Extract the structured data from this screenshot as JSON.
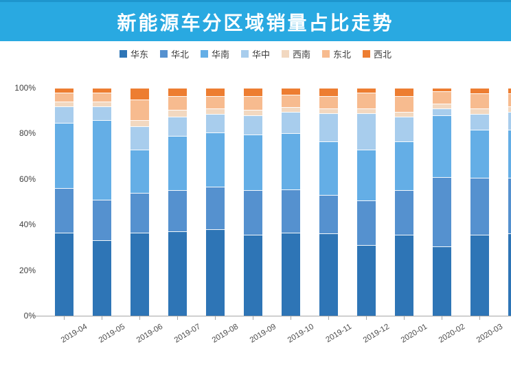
{
  "header": {
    "title": "新能源车分区域销量占比走势",
    "banner_color": "#29a9e1",
    "title_color": "#ffffff"
  },
  "chart_data": {
    "type": "bar",
    "stacked": true,
    "percent_stack": true,
    "grid": false,
    "legend_position": "top",
    "title": "新能源车分区域销量占比走势",
    "xlabel": "",
    "ylabel": "",
    "ylim": [
      0,
      100
    ],
    "yticks": [
      "0%",
      "20%",
      "40%",
      "60%",
      "80%",
      "100%"
    ],
    "ytick_values": [
      0,
      20,
      40,
      60,
      80,
      100
    ],
    "categories": [
      "2019-04",
      "2019-05",
      "2019-06",
      "2019-07",
      "2019-08",
      "2019-09",
      "2019-10",
      "2019-11",
      "2019-12",
      "2020-01",
      "2020-02",
      "2020-03"
    ],
    "series": [
      {
        "name": "华东",
        "color": "#2e75b6",
        "values": [
          36.5,
          33.0,
          36.5,
          37.0,
          38.0,
          35.5,
          36.5,
          36.0,
          31.0,
          35.5,
          30.5,
          35.5
        ]
      },
      {
        "name": "华北",
        "color": "#5591cf",
        "values": [
          19.5,
          18.0,
          17.5,
          18.0,
          18.5,
          19.5,
          19.0,
          17.0,
          19.5,
          19.5,
          30.5,
          25.0
        ]
      },
      {
        "name": "华南",
        "color": "#64aee6",
        "values": [
          28.5,
          35.0,
          19.0,
          24.0,
          24.0,
          24.5,
          24.5,
          23.5,
          22.5,
          21.5,
          27.0,
          21.0
        ]
      },
      {
        "name": "华中",
        "color": "#a8cded",
        "values": [
          7.5,
          6.0,
          10.0,
          8.5,
          8.0,
          8.5,
          9.5,
          12.5,
          16.0,
          11.0,
          3.0,
          7.0
        ]
      },
      {
        "name": "西南",
        "color": "#f2d8c0",
        "values": [
          2.0,
          2.0,
          3.0,
          3.0,
          2.5,
          2.5,
          2.0,
          2.0,
          2.0,
          2.0,
          2.0,
          2.5
        ]
      },
      {
        "name": "东北",
        "color": "#f7bb8f",
        "values": [
          4.0,
          4.0,
          9.0,
          6.0,
          5.5,
          6.0,
          5.5,
          5.5,
          7.0,
          7.0,
          5.5,
          6.5
        ]
      },
      {
        "name": "西北",
        "color": "#ed7d31",
        "values": [
          2.0,
          2.0,
          5.0,
          3.5,
          3.5,
          3.5,
          3.0,
          3.5,
          2.0,
          3.5,
          1.5,
          2.5
        ]
      }
    ],
    "partial_next_bar": {
      "note": "cropped bar at right image edge",
      "values": [
        36.0,
        24.5,
        21.0,
        8.0,
        2.5,
        5.5,
        2.5
      ]
    }
  }
}
